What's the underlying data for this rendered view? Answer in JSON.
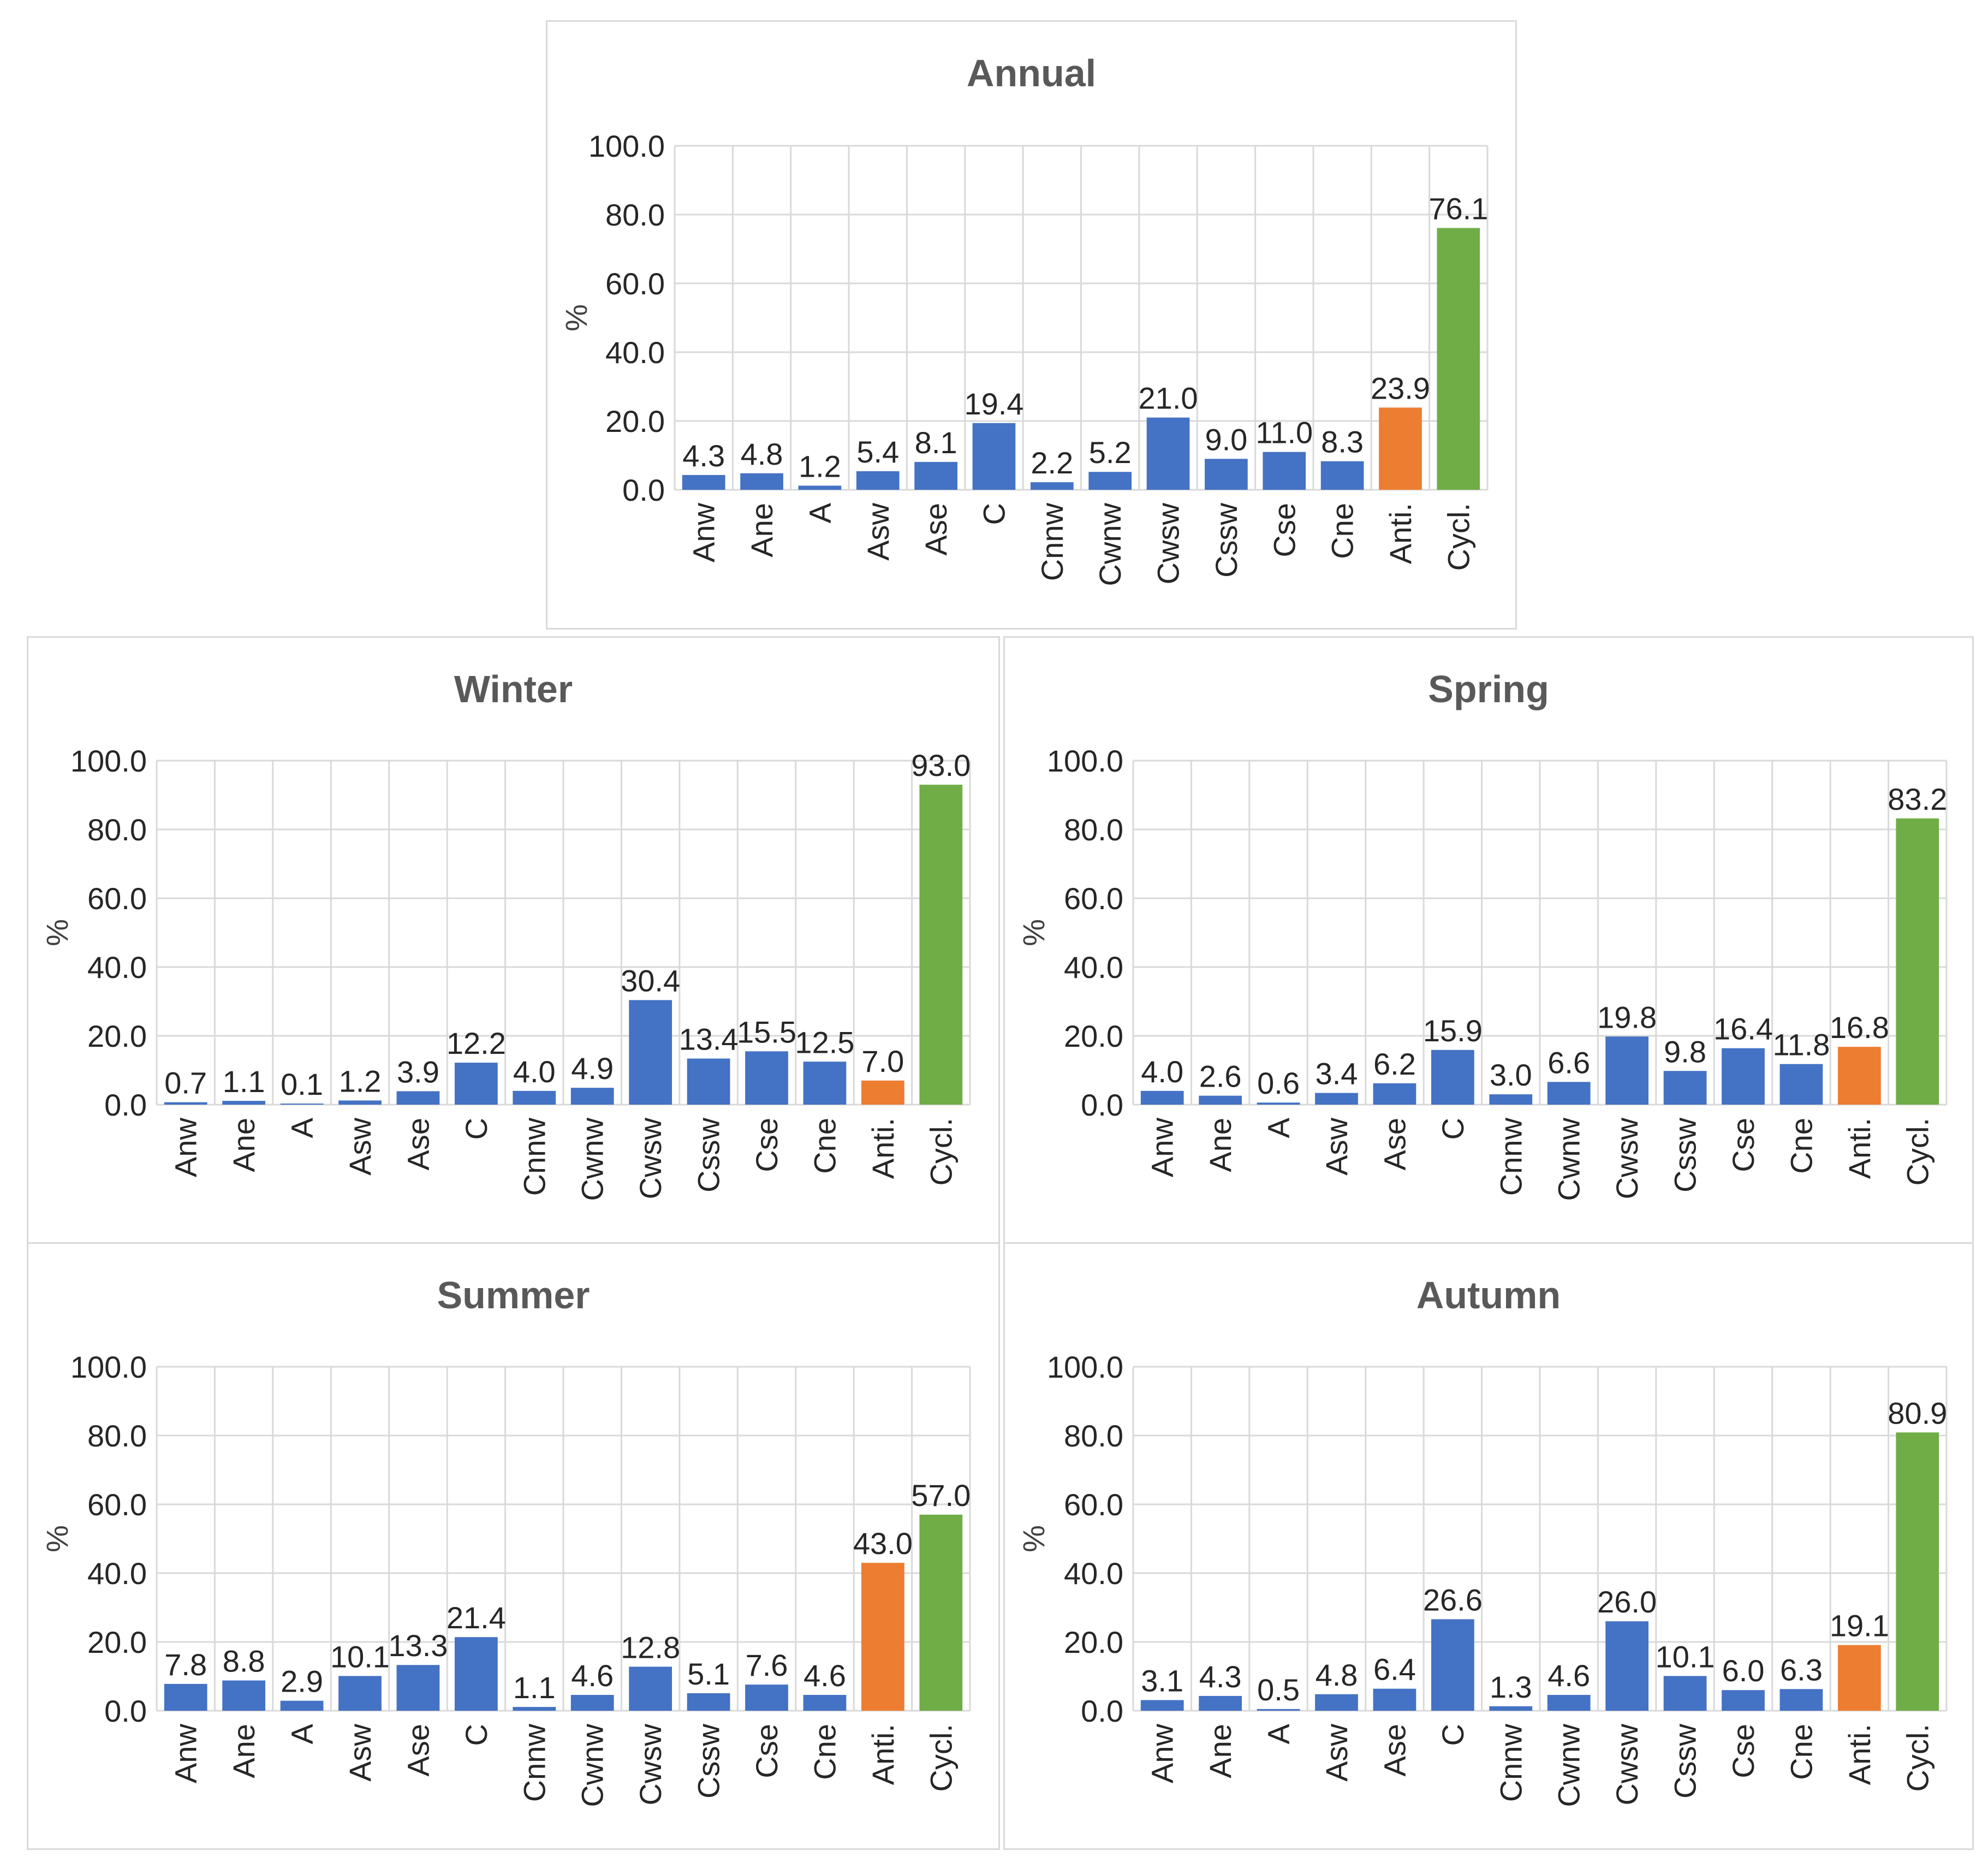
{
  "colors": {
    "bar": "#4472c4",
    "anti": "#ed7d31",
    "cycl": "#70ad47",
    "grid": "#d9d9d9"
  },
  "chart_data": [
    {
      "id": "annual",
      "type": "bar",
      "title": "Annual",
      "ylabel": "%",
      "ylim": [
        0,
        100
      ],
      "yticks": [
        "0.0",
        "20.0",
        "40.0",
        "60.0",
        "80.0",
        "100.0"
      ],
      "categories": [
        "Anw",
        "Ane",
        "A",
        "Asw",
        "Ase",
        "C",
        "Cnnw",
        "Cwnw",
        "Cwsw",
        "Cssw",
        "Cse",
        "Cne",
        "Anti.",
        "Cycl."
      ],
      "values": [
        4.3,
        4.8,
        1.2,
        5.4,
        8.1,
        19.4,
        2.2,
        5.2,
        21.0,
        9.0,
        11.0,
        8.3,
        23.9,
        76.1
      ],
      "value_labels": [
        "4.3",
        "4.8",
        "1.2",
        "5.4",
        "8.1",
        "19.4",
        "2.2",
        "5.2",
        "21.0",
        "9.0",
        "11.0",
        "8.3",
        "23.9",
        "76.1"
      ],
      "bar_colors": [
        "bar",
        "bar",
        "bar",
        "bar",
        "bar",
        "bar",
        "bar",
        "bar",
        "bar",
        "bar",
        "bar",
        "bar",
        "anti",
        "cycl"
      ]
    },
    {
      "id": "winter",
      "type": "bar",
      "title": "Winter",
      "ylabel": "%",
      "ylim": [
        0,
        100
      ],
      "yticks": [
        "0.0",
        "20.0",
        "40.0",
        "60.0",
        "80.0",
        "100.0"
      ],
      "categories": [
        "Anw",
        "Ane",
        "A",
        "Asw",
        "Ase",
        "C",
        "Cnnw",
        "Cwnw",
        "Cwsw",
        "Cssw",
        "Cse",
        "Cne",
        "Anti.",
        "Cycl."
      ],
      "values": [
        0.7,
        1.1,
        0.1,
        1.2,
        3.9,
        12.2,
        4.0,
        4.9,
        30.4,
        13.4,
        15.5,
        12.5,
        7.0,
        93.0
      ],
      "value_labels": [
        "0.7",
        "1.1",
        "0.1",
        "1.2",
        "3.9",
        "12.2",
        "4.0",
        "4.9",
        "30.4",
        "13.4",
        "15.5",
        "12.5",
        "7.0",
        "93.0"
      ],
      "bar_colors": [
        "bar",
        "bar",
        "bar",
        "bar",
        "bar",
        "bar",
        "bar",
        "bar",
        "bar",
        "bar",
        "bar",
        "bar",
        "anti",
        "cycl"
      ]
    },
    {
      "id": "spring",
      "type": "bar",
      "title": "Spring",
      "ylabel": "%",
      "ylim": [
        0,
        100
      ],
      "yticks": [
        "0.0",
        "20.0",
        "40.0",
        "60.0",
        "80.0",
        "100.0"
      ],
      "categories": [
        "Anw",
        "Ane",
        "A",
        "Asw",
        "Ase",
        "C",
        "Cnnw",
        "Cwnw",
        "Cwsw",
        "Cssw",
        "Cse",
        "Cne",
        "Anti.",
        "Cycl."
      ],
      "values": [
        4.0,
        2.6,
        0.6,
        3.4,
        6.2,
        15.9,
        3.0,
        6.6,
        19.8,
        9.8,
        16.4,
        11.8,
        16.8,
        83.2
      ],
      "value_labels": [
        "4.0",
        "2.6",
        "0.6",
        "3.4",
        "6.2",
        "15.9",
        "3.0",
        "6.6",
        "19.8",
        "9.8",
        "16.4",
        "11.8",
        "16.8",
        "83.2"
      ],
      "bar_colors": [
        "bar",
        "bar",
        "bar",
        "bar",
        "bar",
        "bar",
        "bar",
        "bar",
        "bar",
        "bar",
        "bar",
        "bar",
        "anti",
        "cycl"
      ]
    },
    {
      "id": "summer",
      "type": "bar",
      "title": "Summer",
      "ylabel": "%",
      "ylim": [
        0,
        100
      ],
      "yticks": [
        "0.0",
        "20.0",
        "40.0",
        "60.0",
        "80.0",
        "100.0"
      ],
      "categories": [
        "Anw",
        "Ane",
        "A",
        "Asw",
        "Ase",
        "C",
        "Cnnw",
        "Cwnw",
        "Cwsw",
        "Cssw",
        "Cse",
        "Cne",
        "Anti.",
        "Cycl."
      ],
      "values": [
        7.8,
        8.8,
        2.9,
        10.1,
        13.3,
        21.4,
        1.1,
        4.6,
        12.8,
        5.1,
        7.6,
        4.6,
        43.0,
        57.0
      ],
      "value_labels": [
        "7.8",
        "8.8",
        "2.9",
        "10.1",
        "13.3",
        "21.4",
        "1.1",
        "4.6",
        "12.8",
        "5.1",
        "7.6",
        "4.6",
        "43.0",
        "57.0"
      ],
      "bar_colors": [
        "bar",
        "bar",
        "bar",
        "bar",
        "bar",
        "bar",
        "bar",
        "bar",
        "bar",
        "bar",
        "bar",
        "bar",
        "anti",
        "cycl"
      ]
    },
    {
      "id": "autumn",
      "type": "bar",
      "title": "Autumn",
      "ylabel": "%",
      "ylim": [
        0,
        100
      ],
      "yticks": [
        "0.0",
        "20.0",
        "40.0",
        "60.0",
        "80.0",
        "100.0"
      ],
      "categories": [
        "Anw",
        "Ane",
        "A",
        "Asw",
        "Ase",
        "C",
        "Cnnw",
        "Cwnw",
        "Cwsw",
        "Cssw",
        "Cse",
        "Cne",
        "Anti.",
        "Cycl."
      ],
      "values": [
        3.1,
        4.3,
        0.5,
        4.8,
        6.4,
        26.6,
        1.3,
        4.6,
        26.0,
        10.1,
        6.0,
        6.3,
        19.1,
        80.9
      ],
      "value_labels": [
        "3.1",
        "4.3",
        "0.5",
        "4.8",
        "6.4",
        "26.6",
        "1.3",
        "4.6",
        "26.0",
        "10.1",
        "6.0",
        "6.3",
        "19.1",
        "80.9"
      ],
      "bar_colors": [
        "bar",
        "bar",
        "bar",
        "bar",
        "bar",
        "bar",
        "bar",
        "bar",
        "bar",
        "bar",
        "bar",
        "bar",
        "anti",
        "cycl"
      ]
    }
  ]
}
